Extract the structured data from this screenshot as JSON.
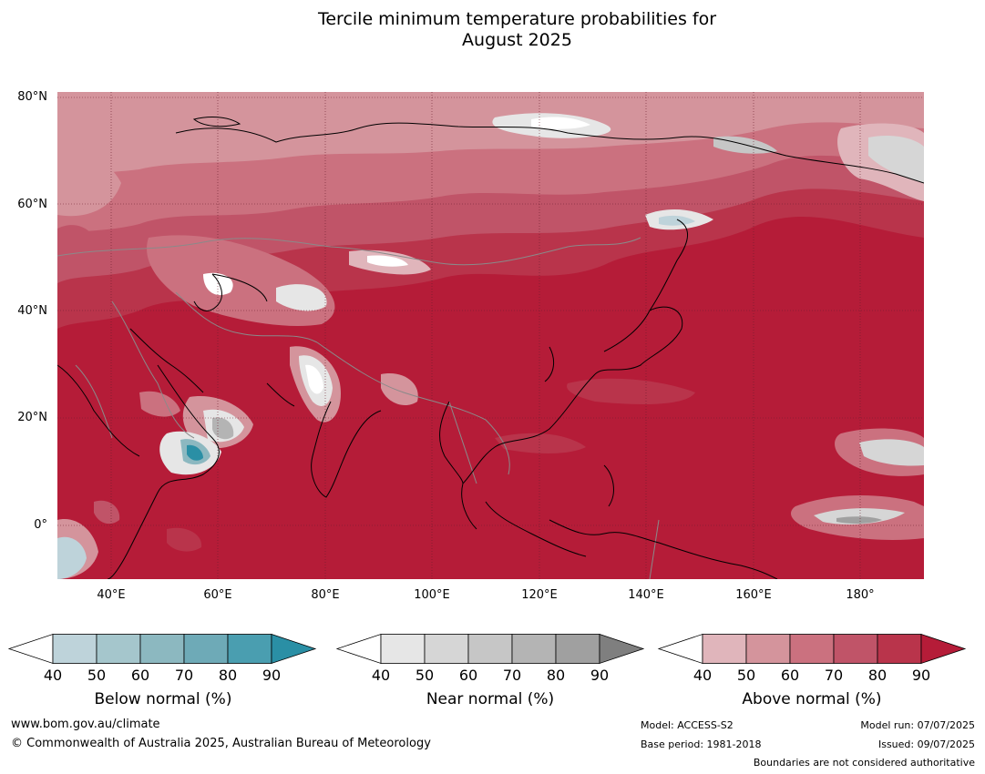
{
  "title": {
    "line1": "Tercile minimum temperature probabilities for",
    "line2": "August 2025"
  },
  "map": {
    "lat_labels": [
      "80°N",
      "60°N",
      "40°N",
      "20°N",
      "0°"
    ],
    "lon_labels": [
      "40°E",
      "60°E",
      "80°E",
      "100°E",
      "120°E",
      "140°E",
      "160°E",
      "180°"
    ]
  },
  "colorbars": [
    {
      "name": "below",
      "title": "Below normal (%)",
      "ticks": [
        "40",
        "50",
        "60",
        "70",
        "80",
        "90"
      ],
      "colors": [
        "#ffffff",
        "#bed3da",
        "#a5c6cc",
        "#8cb8c0",
        "#6eaab7",
        "#4a9eb0",
        "#2a8fa5"
      ]
    },
    {
      "name": "near",
      "title": "Near normal (%)",
      "ticks": [
        "40",
        "50",
        "60",
        "70",
        "80",
        "90"
      ],
      "colors": [
        "#ffffff",
        "#e6e6e6",
        "#d6d6d6",
        "#c6c6c6",
        "#b4b4b4",
        "#a0a0a0",
        "#7f7f7f"
      ]
    },
    {
      "name": "above",
      "title": "Above normal (%)",
      "ticks": [
        "40",
        "50",
        "60",
        "70",
        "80",
        "90"
      ],
      "colors": [
        "#ffffff",
        "#e0b5bb",
        "#d4949c",
        "#cb717f",
        "#c05468",
        "#b9344b",
        "#b51c38"
      ]
    }
  ],
  "footer": {
    "website": "www.bom.gov.au/climate",
    "copyright": "© Commonwealth of Australia 2025, Australian Bureau of Meteorology",
    "model": "Model: ACCESS-S2",
    "base_period": "Base period: 1981-2018",
    "model_run": "Model run: 07/07/2025",
    "issued": "Issued: 09/07/2025",
    "disclaimer": "Boundaries are not considered authoritative"
  }
}
